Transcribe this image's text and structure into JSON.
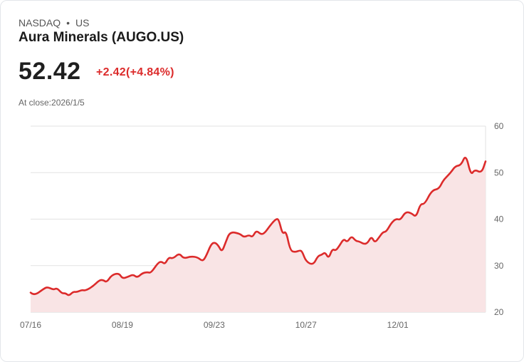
{
  "header": {
    "exchange": "NASDAQ",
    "separator": "•",
    "region": "US",
    "title": "Aura Minerals (AUGO.US)",
    "price": "52.42",
    "change": "+2.42(+4.84%)",
    "close_label": "At close:2026/1/5"
  },
  "colors": {
    "line": "#dc2b2b",
    "fill": "#f9e4e5",
    "grid": "#e2e2e2"
  },
  "chart_data": {
    "type": "area",
    "title": "Aura Minerals (AUGO.US)",
    "xlabel": "",
    "ylabel": "",
    "x_unit": "days since 07/16",
    "xlim": [
      0,
      171
    ],
    "ylim": [
      20,
      60
    ],
    "yticks": [
      20,
      30,
      40,
      50,
      60
    ],
    "y_axis_side": "right",
    "grid": true,
    "xticks": [
      {
        "label": "07/16",
        "x": 0
      },
      {
        "label": "08/19",
        "x": 34.5
      },
      {
        "label": "09/23",
        "x": 69
      },
      {
        "label": "10/27",
        "x": 103.5
      },
      {
        "label": "12/01",
        "x": 138
      }
    ],
    "points": [
      [
        0,
        24.2
      ],
      [
        1.3,
        23.5
      ],
      [
        5.1,
        25.1
      ],
      [
        6.4,
        25.4
      ],
      [
        8.6,
        24.8
      ],
      [
        9.9,
        25.2
      ],
      [
        11.8,
        24.0
      ],
      [
        13.1,
        24.1
      ],
      [
        14.4,
        23.5
      ],
      [
        16.0,
        24.4
      ],
      [
        17.4,
        24.3
      ],
      [
        19.3,
        24.8
      ],
      [
        20.6,
        24.6
      ],
      [
        23.3,
        25.5
      ],
      [
        25.9,
        26.9
      ],
      [
        27.3,
        26.9
      ],
      [
        28.6,
        26.4
      ],
      [
        30.5,
        28.0
      ],
      [
        33.2,
        28.4
      ],
      [
        34.5,
        27.2
      ],
      [
        36.6,
        27.6
      ],
      [
        38.5,
        28.1
      ],
      [
        40.1,
        27.4
      ],
      [
        42.0,
        28.4
      ],
      [
        43.9,
        28.6
      ],
      [
        45.2,
        28.4
      ],
      [
        47.9,
        30.6
      ],
      [
        49.2,
        30.9
      ],
      [
        50.5,
        30.3
      ],
      [
        51.9,
        31.8
      ],
      [
        53.5,
        31.5
      ],
      [
        55.9,
        32.7
      ],
      [
        57.5,
        31.5
      ],
      [
        60.2,
        32.0
      ],
      [
        62.8,
        31.8
      ],
      [
        64.7,
        30.9
      ],
      [
        66.0,
        32.1
      ],
      [
        67.9,
        34.7
      ],
      [
        69.3,
        35.0
      ],
      [
        70.6,
        34.3
      ],
      [
        71.9,
        32.9
      ],
      [
        73.3,
        35.0
      ],
      [
        74.9,
        37.3
      ],
      [
        78.6,
        36.9
      ],
      [
        80.2,
        36.1
      ],
      [
        82.1,
        36.6
      ],
      [
        83.4,
        36.1
      ],
      [
        84.8,
        37.6
      ],
      [
        86.6,
        36.7
      ],
      [
        88.0,
        37.0
      ],
      [
        90.1,
        38.7
      ],
      [
        92.3,
        40.1
      ],
      [
        93.3,
        39.9
      ],
      [
        94.7,
        36.7
      ],
      [
        96.0,
        37.5
      ],
      [
        97.6,
        33.2
      ],
      [
        99.5,
        32.9
      ],
      [
        101.3,
        33.3
      ],
      [
        102.1,
        33.0
      ],
      [
        103.5,
        30.9
      ],
      [
        106.2,
        30.1
      ],
      [
        108.0,
        32.1
      ],
      [
        109.4,
        32.3
      ],
      [
        110.7,
        32.9
      ],
      [
        112.0,
        31.5
      ],
      [
        113.4,
        33.6
      ],
      [
        114.7,
        33.2
      ],
      [
        116.1,
        34.3
      ],
      [
        117.7,
        35.8
      ],
      [
        119.0,
        35.0
      ],
      [
        120.6,
        36.4
      ],
      [
        122.2,
        35.3
      ],
      [
        123.5,
        35.2
      ],
      [
        125.4,
        34.6
      ],
      [
        126.7,
        34.9
      ],
      [
        128.1,
        36.3
      ],
      [
        129.4,
        34.9
      ],
      [
        131.0,
        36.1
      ],
      [
        132.4,
        37.2
      ],
      [
        133.7,
        37.3
      ],
      [
        135.6,
        39.2
      ],
      [
        137.4,
        40.1
      ],
      [
        139.0,
        39.8
      ],
      [
        140.9,
        41.6
      ],
      [
        143.1,
        41.3
      ],
      [
        144.9,
        40.4
      ],
      [
        146.5,
        43.3
      ],
      [
        148.1,
        43.2
      ],
      [
        150.8,
        46.2
      ],
      [
        153.5,
        46.5
      ],
      [
        155.1,
        48.4
      ],
      [
        157.8,
        49.9
      ],
      [
        159.6,
        51.4
      ],
      [
        161.8,
        51.6
      ],
      [
        163.6,
        54.0
      ],
      [
        165.5,
        49.4
      ],
      [
        166.9,
        50.7
      ],
      [
        169.5,
        49.9
      ],
      [
        171,
        52.42
      ]
    ]
  }
}
